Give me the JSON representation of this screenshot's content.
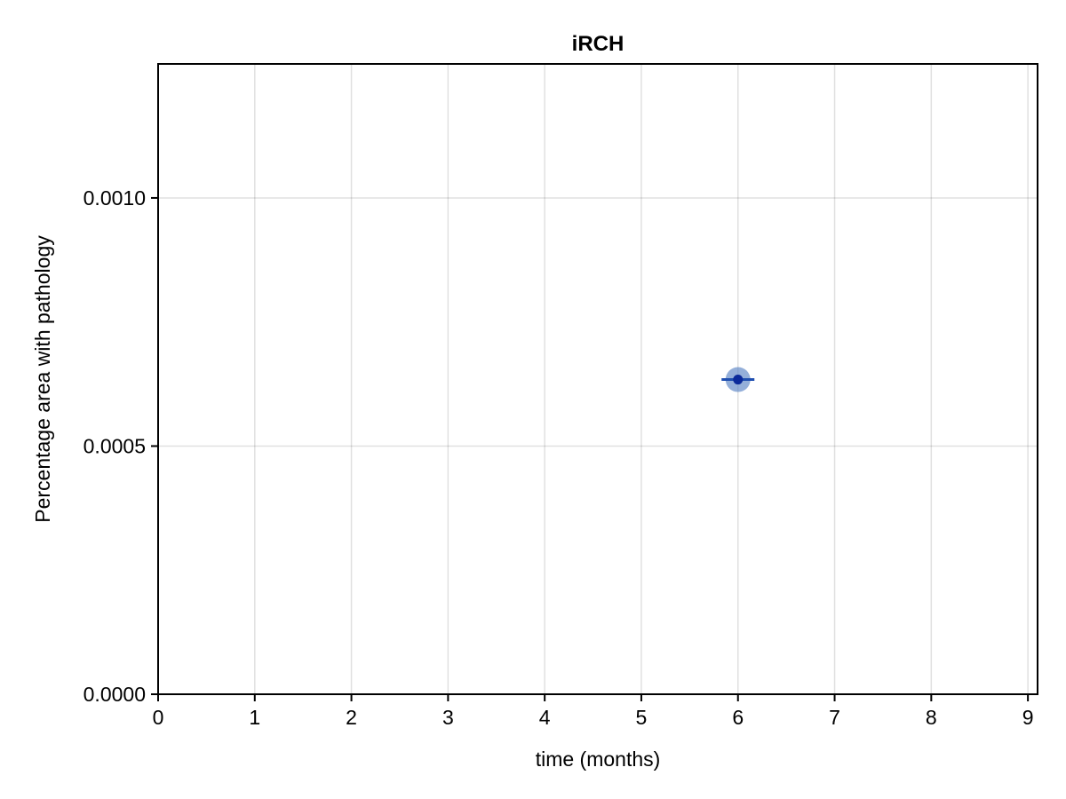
{
  "chart_data": {
    "type": "scatter",
    "title": "iRCH",
    "xlabel": "time (months)",
    "ylabel": "Percentage area with pathology",
    "xlim": [
      0,
      9.1
    ],
    "ylim": [
      0,
      0.00127
    ],
    "x_ticks": [
      0,
      1,
      2,
      3,
      4,
      5,
      6,
      7,
      8,
      9
    ],
    "x_tick_labels": [
      "0",
      "1",
      "2",
      "3",
      "4",
      "5",
      "6",
      "7",
      "8",
      "9"
    ],
    "y_ticks": [
      0,
      0.0005,
      0.001
    ],
    "y_tick_labels": [
      "0.0000",
      "0.0005",
      "0.0010"
    ],
    "grid": true,
    "series": [
      {
        "points": [
          {
            "x": 6,
            "y": 0.000634,
            "xerr": 0.17
          }
        ],
        "marker_color": "#0b2a9a",
        "halo_color": "#5b84c4",
        "errorbar_color": "#1f4fb0"
      }
    ]
  }
}
